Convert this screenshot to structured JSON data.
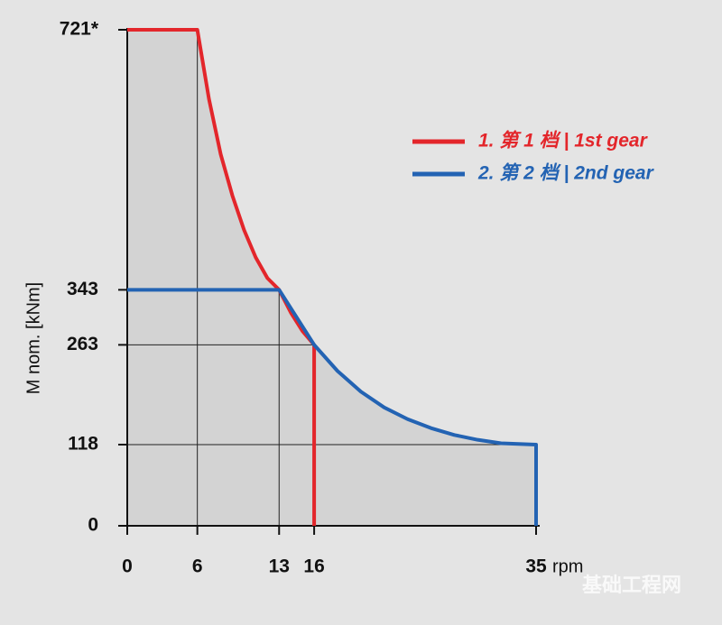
{
  "chart_data": {
    "type": "line",
    "xlabel": "rpm",
    "ylabel": "M nom. [kNm]",
    "xlim": [
      0,
      35
    ],
    "xticks": [
      0,
      6,
      13,
      16,
      35
    ],
    "ylim": [
      0,
      721
    ],
    "yticks": [
      0,
      118,
      263,
      343,
      {
        "value": 721,
        "label": "721*"
      }
    ],
    "grid": true,
    "legend": "upper right",
    "watermark": "基础工程网",
    "series": [
      {
        "name": "1. 第 1 档 | 1st gear",
        "color": "#e3262b",
        "x": [
          0,
          6,
          7,
          8,
          9,
          10,
          11,
          12,
          13,
          14,
          15,
          16,
          16
        ],
        "values": [
          721,
          721,
          620,
          540,
          480,
          430,
          390,
          360,
          343,
          310,
          283,
          263,
          0
        ]
      },
      {
        "name": "2. 第 2 档 | 2nd gear",
        "color": "#2363b3",
        "x": [
          0,
          13,
          16,
          18,
          20,
          22,
          24,
          26,
          28,
          30,
          32,
          35,
          35
        ],
        "values": [
          343,
          343,
          263,
          225,
          195,
          172,
          155,
          142,
          132,
          125,
          120,
          118,
          0
        ]
      }
    ]
  }
}
